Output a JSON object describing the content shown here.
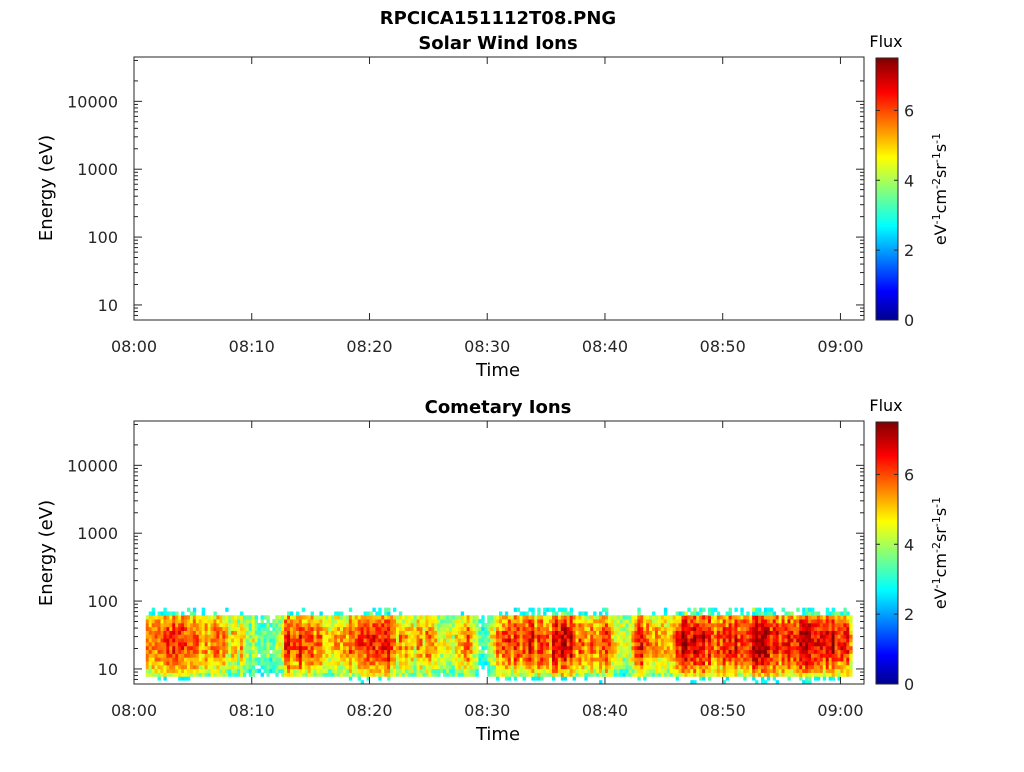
{
  "figure": {
    "title": "RPCICA151112T08.PNG"
  },
  "colorbar": {
    "label": "Flux",
    "unit_label": "eV-1cm-2sr-1s-1",
    "ticks": [
      0,
      2,
      4,
      6
    ],
    "range": [
      0,
      7.5
    ],
    "colormap": "jet"
  },
  "chart_data": [
    {
      "type": "heatmap",
      "title": "Solar Wind Ions",
      "xlabel": "Time",
      "ylabel": "Energy (eV)",
      "x_ticks": [
        "08:00",
        "08:10",
        "08:20",
        "08:30",
        "08:40",
        "08:50",
        "09:00"
      ],
      "x_range_minutes": [
        0,
        62
      ],
      "y_scale": "log",
      "y_ticks": [
        10,
        100,
        1000,
        10000
      ],
      "y_tick_labels": [
        "10",
        "100",
        "1000",
        "10000"
      ],
      "ylim": [
        6,
        45000
      ],
      "data": "empty"
    },
    {
      "type": "heatmap",
      "title": "Cometary Ions",
      "xlabel": "Time",
      "ylabel": "Energy (eV)",
      "x_ticks": [
        "08:00",
        "08:10",
        "08:20",
        "08:30",
        "08:40",
        "08:50",
        "09:00"
      ],
      "x_range_minutes": [
        0,
        62
      ],
      "y_scale": "log",
      "y_ticks": [
        10,
        100,
        1000,
        10000
      ],
      "y_tick_labels": [
        "10",
        "100",
        "1000",
        "10000"
      ],
      "ylim": [
        6,
        45000
      ],
      "data_time_range_minutes": [
        1,
        61
      ],
      "data_energy_range_eV": [
        6,
        80
      ],
      "flux_profile": [
        {
          "t": 1,
          "flux": 5.6
        },
        {
          "t": 3,
          "flux": 6.0
        },
        {
          "t": 5,
          "flux": 5.8
        },
        {
          "t": 7,
          "flux": 5.4
        },
        {
          "t": 9,
          "flux": 5.0
        },
        {
          "t": 10.5,
          "flux": 3.5
        },
        {
          "t": 12,
          "flux": 4.0
        },
        {
          "t": 13,
          "flux": 6.6
        },
        {
          "t": 15,
          "flux": 5.8
        },
        {
          "t": 17,
          "flux": 5.2
        },
        {
          "t": 19,
          "flux": 6.0
        },
        {
          "t": 21,
          "flux": 6.6
        },
        {
          "t": 23,
          "flux": 5.0
        },
        {
          "t": 25,
          "flux": 5.3
        },
        {
          "t": 27,
          "flux": 4.4
        },
        {
          "t": 28.5,
          "flux": 5.6
        },
        {
          "t": 29.5,
          "flux": 3.2
        },
        {
          "t": 31,
          "flux": 5.6
        },
        {
          "t": 33,
          "flux": 6.2
        },
        {
          "t": 35,
          "flux": 6.0
        },
        {
          "t": 36.5,
          "flux": 7.0
        },
        {
          "t": 38,
          "flux": 5.3
        },
        {
          "t": 40,
          "flux": 6.2
        },
        {
          "t": 41.5,
          "flux": 4.0
        },
        {
          "t": 43,
          "flux": 6.4
        },
        {
          "t": 45,
          "flux": 5.2
        },
        {
          "t": 47,
          "flux": 7.0
        },
        {
          "t": 49,
          "flux": 6.2
        },
        {
          "t": 51,
          "flux": 6.4
        },
        {
          "t": 53,
          "flux": 7.0
        },
        {
          "t": 55,
          "flux": 6.2
        },
        {
          "t": 57,
          "flux": 7.0
        },
        {
          "t": 59,
          "flux": 6.6
        },
        {
          "t": 61,
          "flux": 5.8
        }
      ]
    }
  ]
}
